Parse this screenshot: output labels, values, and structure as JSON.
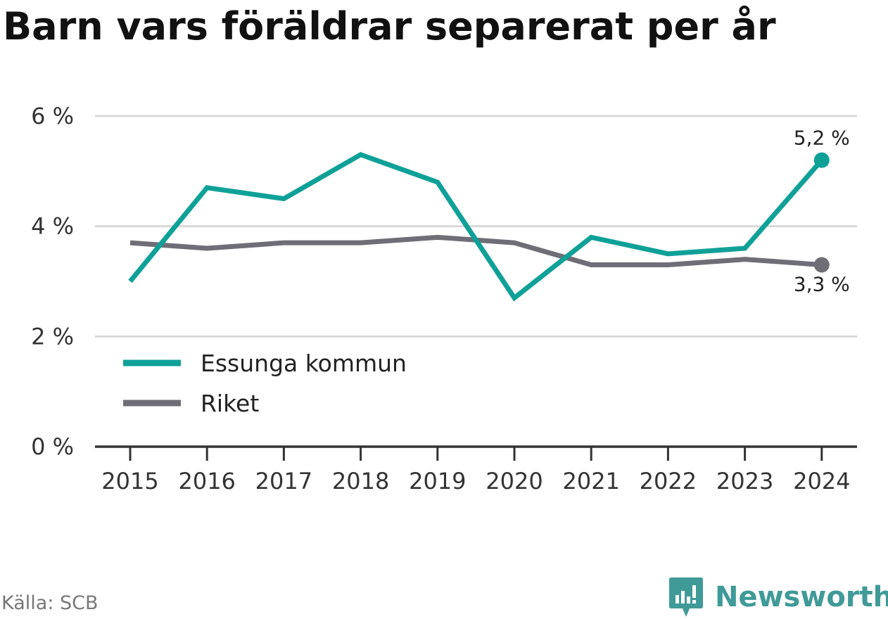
{
  "title": "Barn vars föräldrar separerat per år",
  "source": "Källa: SCB",
  "brand": {
    "name": "Newsworthy",
    "logo_icon": "newsworthy-logo-icon",
    "color": "#3f9a98"
  },
  "colors": {
    "essunga": "#0fa198",
    "riket": "#6f6e76",
    "grid": "#d9d9d9",
    "axis": "#333333"
  },
  "chart_data": {
    "type": "line",
    "title": "Barn vars föräldrar separerat per år",
    "xlabel": "",
    "ylabel": "",
    "ylim": [
      0,
      6
    ],
    "yticks": [
      0,
      2,
      4,
      6
    ],
    "ytick_labels": [
      "0 %",
      "2 %",
      "4 %",
      "6 %"
    ],
    "grid": true,
    "legend_position": "lower-left",
    "categories": [
      "2015",
      "2016",
      "2017",
      "2018",
      "2019",
      "2020",
      "2021",
      "2022",
      "2023",
      "2024"
    ],
    "series": [
      {
        "name": "Essunga kommun",
        "color": "#0fa198",
        "values": [
          3.0,
          4.7,
          4.5,
          5.3,
          4.8,
          2.7,
          3.8,
          3.5,
          3.6,
          5.2
        ],
        "end_label": "5,2 %"
      },
      {
        "name": "Riket",
        "color": "#6f6e76",
        "values": [
          3.7,
          3.6,
          3.7,
          3.7,
          3.8,
          3.7,
          3.3,
          3.3,
          3.4,
          3.3
        ],
        "end_label": "3,3 %"
      }
    ]
  }
}
